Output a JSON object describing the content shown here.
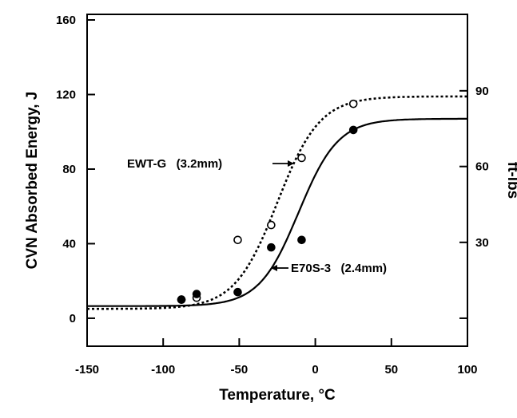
{
  "chart_data": {
    "type": "scatter",
    "xlabel": "Temperature, °C",
    "ylabel": "CVN Absorbed Energy, J",
    "y2label": "ft-lbs",
    "xlim": [
      -150,
      100
    ],
    "ylim": [
      -15,
      163
    ],
    "y2_tick_values_J": [
      40.7,
      81.4,
      122.0
    ],
    "x_ticks": [
      -150,
      -100,
      -50,
      0,
      50,
      100
    ],
    "x_tick_labels": [
      "-150",
      "-100",
      "-50",
      "0",
      "50",
      "100"
    ],
    "y_ticks": [
      0,
      40,
      80,
      120,
      160
    ],
    "y_tick_labels": [
      "0",
      "40",
      "80",
      "120",
      "160"
    ],
    "y2_tick_labels": [
      "30",
      "60",
      "90"
    ],
    "grid": false,
    "series": [
      {
        "name": "EWT-G (3.2mm)",
        "marker": "open-circle",
        "line_style": "dotted",
        "points": [
          [
            -88,
            10
          ],
          [
            -78,
            11
          ],
          [
            -51,
            42
          ],
          [
            -29,
            50
          ],
          [
            -9,
            86
          ],
          [
            25,
            115
          ]
        ],
        "fit": {
          "lower_shelf": 5,
          "upper_shelf": 119,
          "midpoint": -25,
          "scale": 14
        }
      },
      {
        "name": "E70S-3 (2.4mm)",
        "marker": "filled-circle",
        "line_style": "solid",
        "points": [
          [
            -88,
            10
          ],
          [
            -78,
            13
          ],
          [
            -51,
            14
          ],
          [
            -29,
            38
          ],
          [
            -9,
            42
          ],
          [
            25,
            101
          ]
        ],
        "fit": {
          "lower_shelf": 6.5,
          "upper_shelf": 107,
          "midpoint": -11,
          "scale": 13
        }
      }
    ],
    "annotations": [
      {
        "text": "EWT-G   (3.2mm)",
        "series": 0
      },
      {
        "text": "E70S-3   (2.4mm)",
        "series": 1
      }
    ]
  }
}
